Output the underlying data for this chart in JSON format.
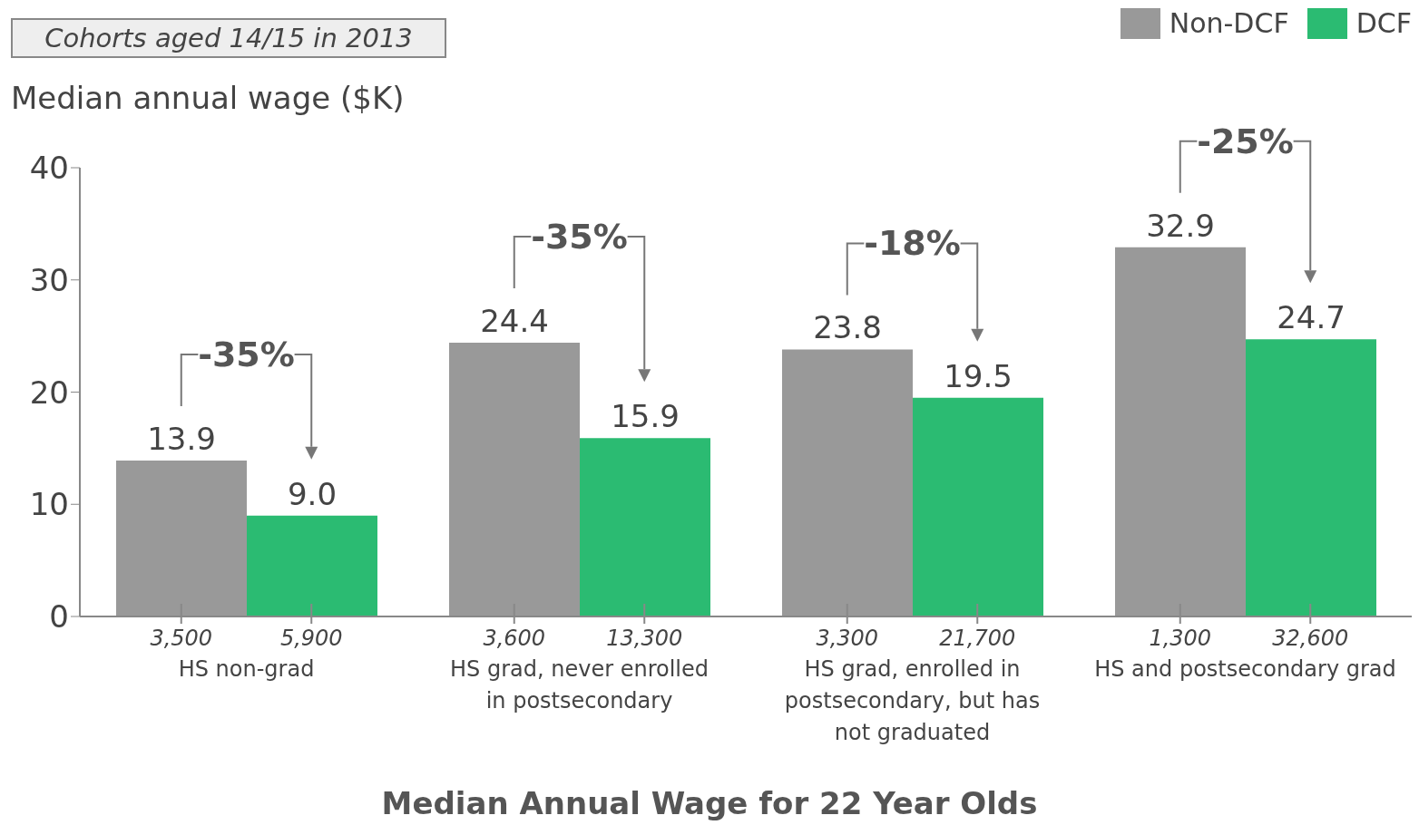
{
  "chart_data": {
    "type": "bar",
    "title": "Median Annual Wage for 22 Year Olds",
    "subtitle": "Cohorts aged 14/15 in 2013",
    "ylabel": "Median annual wage ($K)",
    "categories": [
      "HS non-grad",
      "HS grad, never enrolled in postsecondary",
      "HS grad, enrolled in postsecondary, but has not graduated",
      "HS and postsecondary grad"
    ],
    "series": [
      {
        "name": "Non-DCF",
        "color": "#999999",
        "values": [
          13.9,
          24.4,
          23.8,
          32.9
        ],
        "value_labels": [
          "13.9",
          "24.4",
          "23.8",
          "32.9"
        ]
      },
      {
        "name": "DCF",
        "color": "#2bbb72",
        "values": [
          9.0,
          15.9,
          19.5,
          24.7
        ],
        "value_labels": [
          "9.0",
          "15.9",
          "19.5",
          "24.7"
        ]
      }
    ],
    "ylim": [
      0,
      40
    ],
    "yticks": [
      0,
      10,
      20,
      30,
      40
    ],
    "legend": "top right",
    "annotations": [
      "-35%",
      "3,500",
      "5,900",
      "-35%",
      "3,600",
      "13,300",
      "-18%",
      "3,300",
      "21,700",
      "-25%",
      "1,300",
      "32,600"
    ]
  }
}
